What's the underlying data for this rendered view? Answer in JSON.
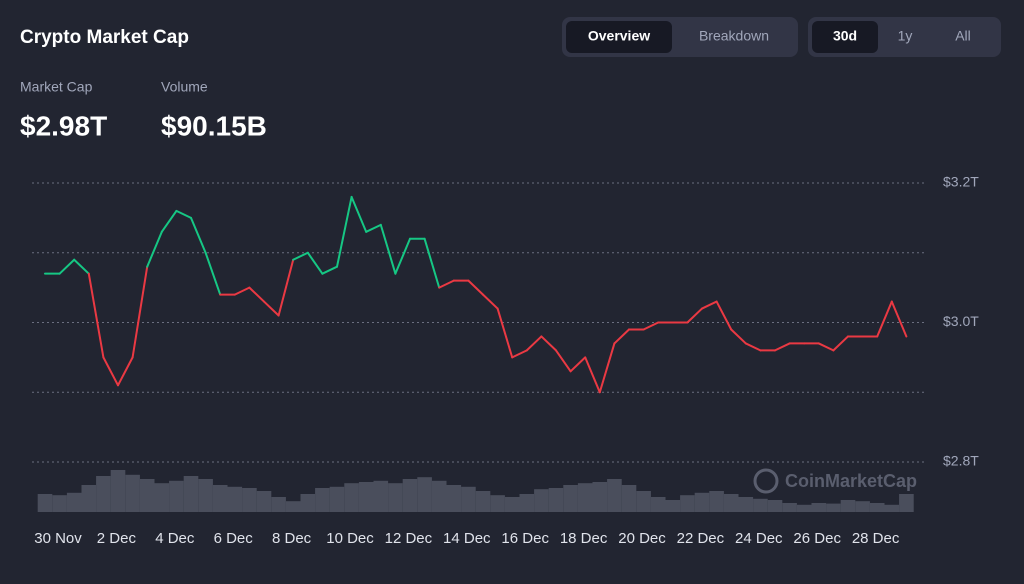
{
  "header": {
    "title": "Crypto Market Cap",
    "tabs": [
      "Overview",
      "Breakdown"
    ],
    "active_tab": 0,
    "ranges": [
      "30d",
      "1y",
      "All"
    ],
    "active_range": 0
  },
  "stats": [
    {
      "label": "Market Cap",
      "value": "$2.98T"
    },
    {
      "label": "Volume",
      "value": "$90.15B"
    }
  ],
  "watermark": "CoinMarketCap",
  "chart_data": {
    "type": "line",
    "categories": [
      "30 Nov",
      null,
      null,
      null,
      "2 Dec",
      null,
      null,
      null,
      "4 Dec",
      null,
      null,
      null,
      "6 Dec",
      null,
      null,
      null,
      "8 Dec",
      null,
      null,
      null,
      "10 Dec",
      null,
      null,
      null,
      "12 Dec",
      null,
      null,
      null,
      "14 Dec",
      null,
      null,
      null,
      "16 Dec",
      null,
      null,
      null,
      "18 Dec",
      null,
      null,
      null,
      "20 Dec",
      null,
      null,
      null,
      "22 Dec",
      null,
      null,
      null,
      "24 Dec",
      null,
      null,
      null,
      "26 Dec",
      null,
      null,
      null,
      "28 Dec",
      null,
      null,
      null
    ],
    "series": [
      {
        "values": [
          3.07,
          3.07,
          3.09,
          3.07,
          2.95,
          2.91,
          2.95,
          3.08,
          3.13,
          3.16,
          3.15,
          3.1,
          3.04,
          3.04,
          3.05,
          3.03,
          3.01,
          3.09,
          3.1,
          3.07,
          3.08,
          3.18,
          3.13,
          3.14,
          3.07,
          3.12,
          3.12,
          3.05,
          3.06,
          3.06,
          3.04,
          3.02,
          2.95,
          2.96,
          2.98,
          2.96,
          2.93,
          2.95,
          2.9,
          2.97,
          2.99,
          2.99,
          3.0,
          3.0,
          3.0,
          3.02,
          3.03,
          2.99,
          2.97,
          2.96,
          2.96,
          2.97,
          2.97,
          2.97,
          2.96,
          2.98,
          2.98,
          2.98,
          3.03,
          2.98
        ]
      }
    ],
    "baseline": 3.07,
    "up_color": "#16c784",
    "down_color": "#ea3943",
    "ylim": [
      2.8,
      3.2
    ],
    "yticks": [
      {
        "value": 2.8,
        "label": "$2.8T"
      },
      {
        "value": 3.0,
        "label": "$3.0T"
      },
      {
        "value": 3.2,
        "label": "$3.2T"
      }
    ],
    "minor_yticks": [
      2.9,
      3.1
    ],
    "grid": true,
    "volume": {
      "color": "#4a4e5c",
      "lim": [
        0,
        100
      ],
      "values": [
        30,
        28,
        32,
        45,
        60,
        70,
        62,
        55,
        48,
        52,
        60,
        55,
        45,
        42,
        40,
        35,
        25,
        18,
        30,
        40,
        42,
        48,
        50,
        52,
        48,
        55,
        58,
        52,
        45,
        42,
        35,
        28,
        25,
        30,
        38,
        40,
        45,
        48,
        50,
        55,
        45,
        35,
        25,
        20,
        28,
        32,
        35,
        30,
        25,
        22,
        20,
        15,
        12,
        15,
        14,
        20,
        18,
        15,
        12,
        30
      ]
    }
  }
}
